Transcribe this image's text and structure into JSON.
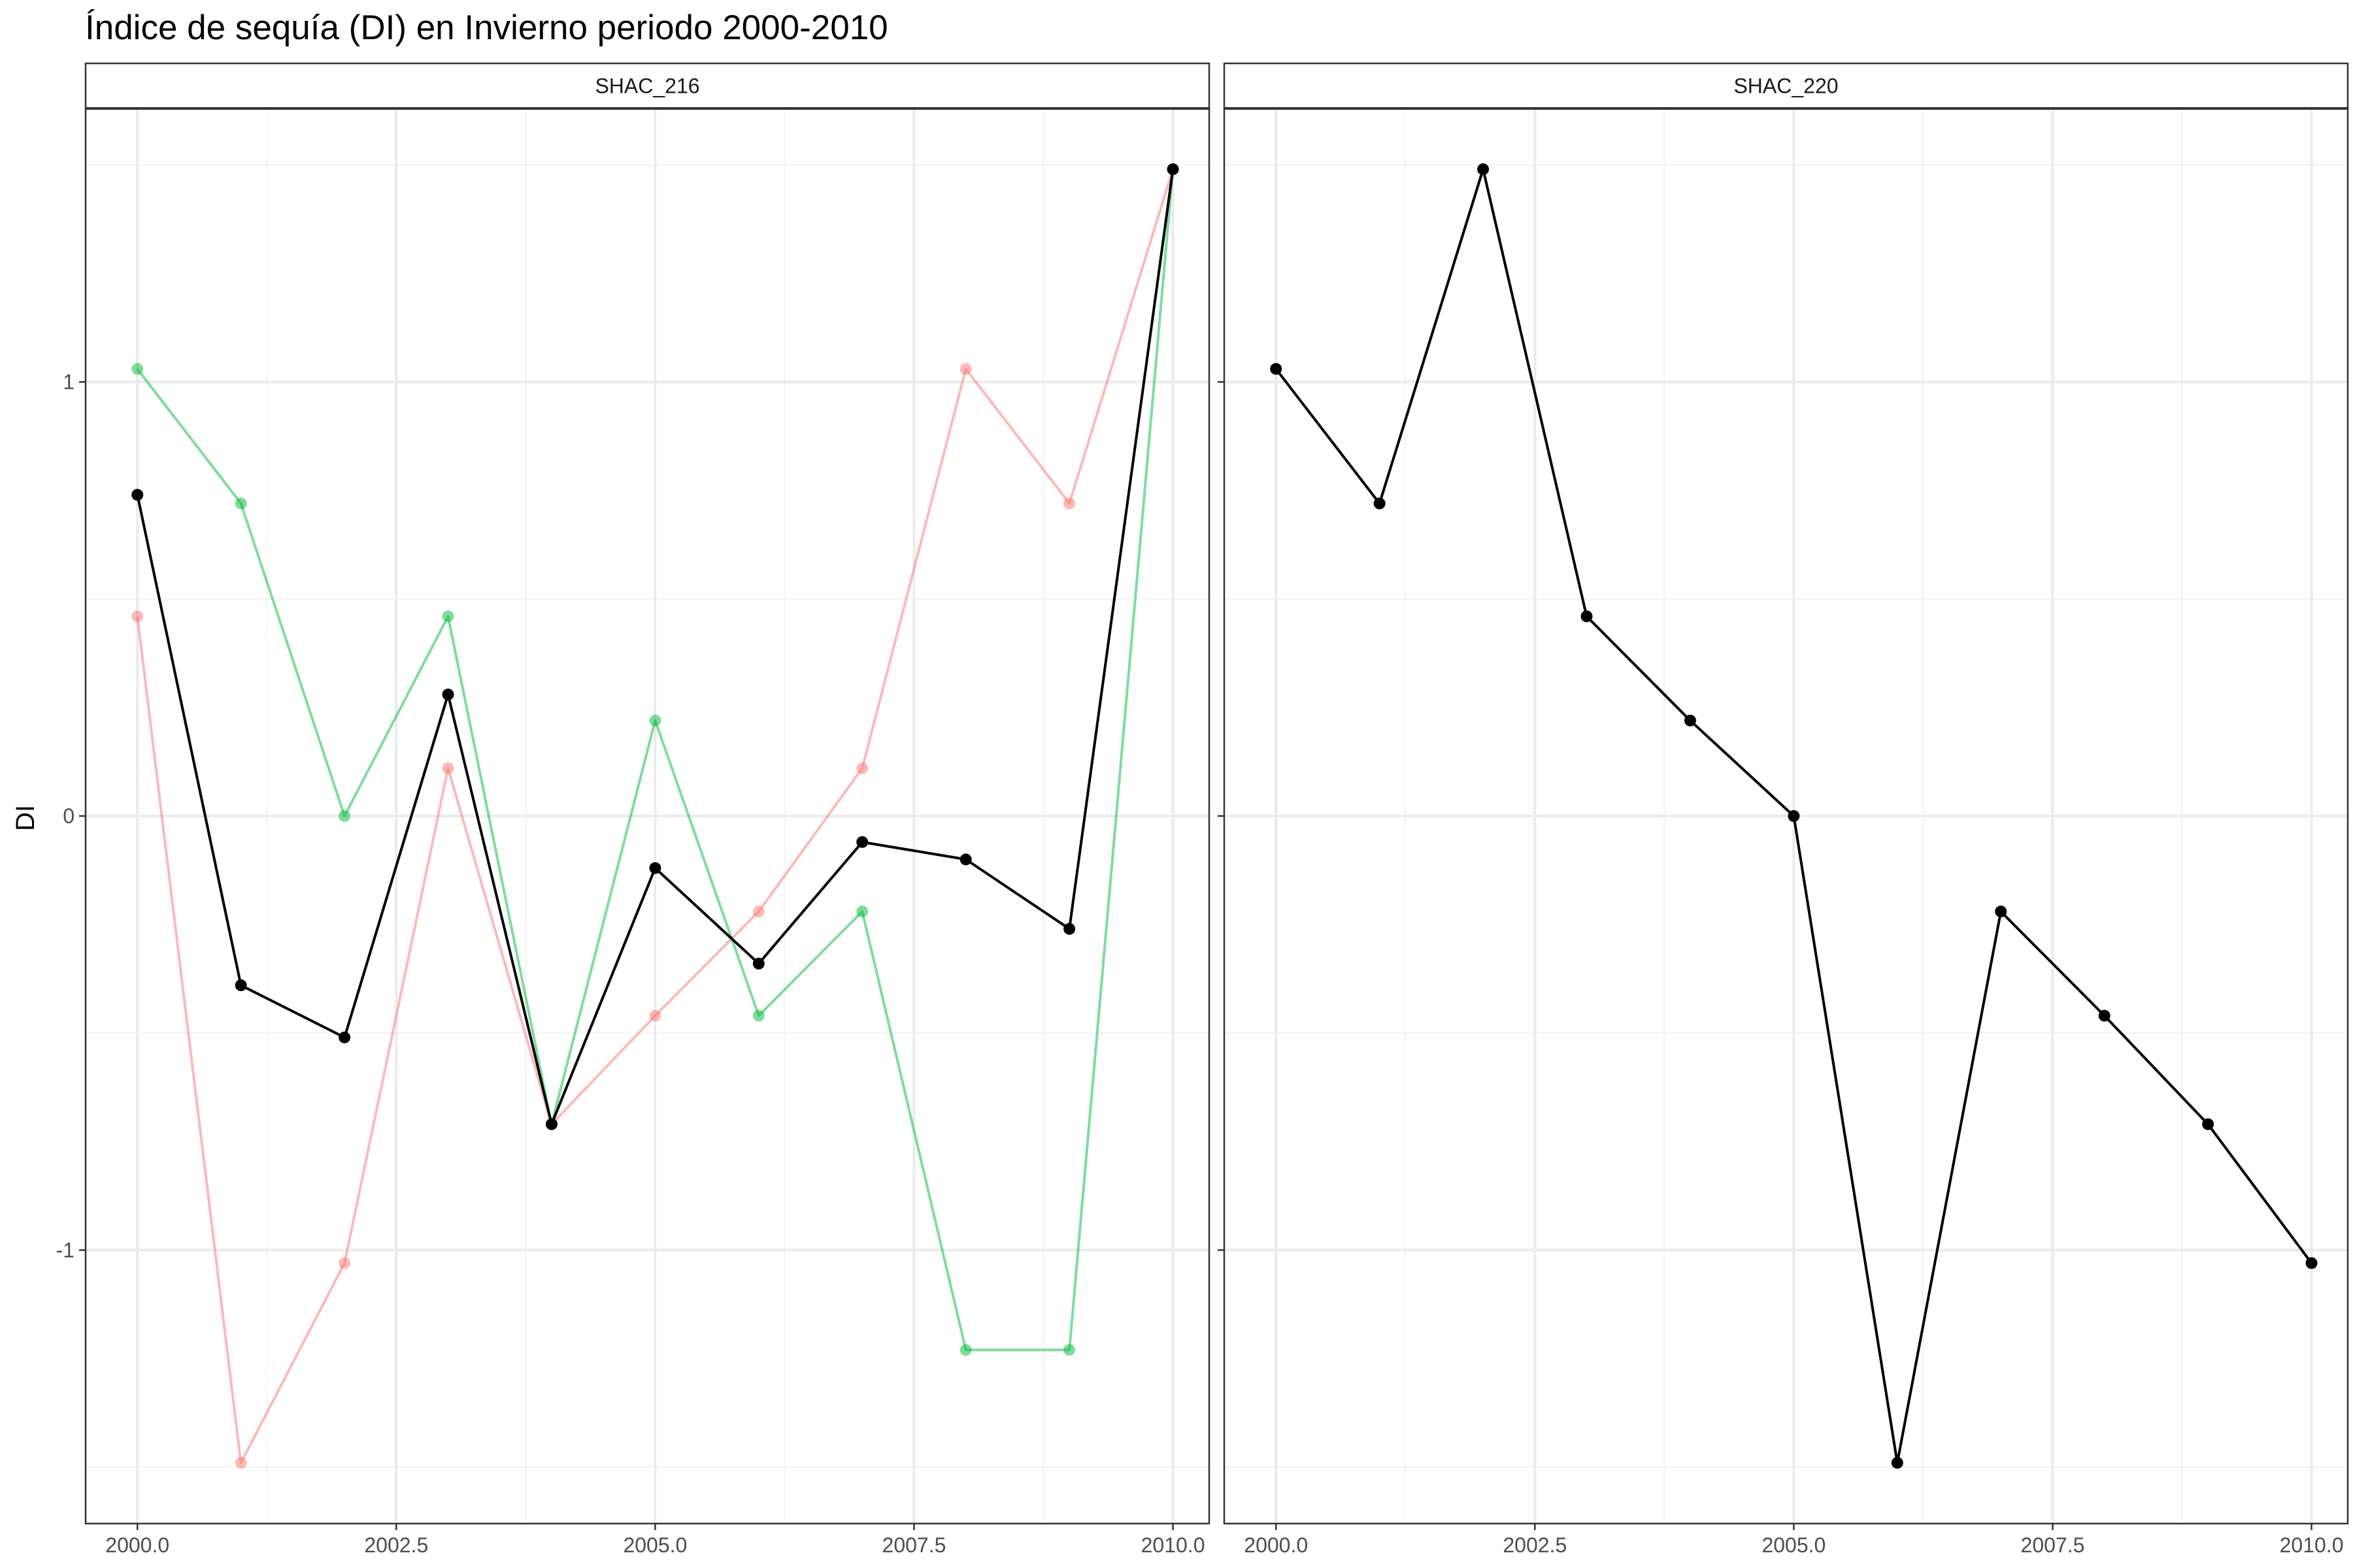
{
  "chart_data": {
    "type": "line",
    "title": "Índice de sequía (DI) en Invierno periodo 2000-2010",
    "xlabel": "",
    "ylabel": "DI",
    "xlim": [
      1999.5,
      2010.35
    ],
    "ylim": [
      -1.63,
      1.63
    ],
    "x_ticks": [
      2000,
      2002.5,
      2005,
      2007.5,
      2010
    ],
    "x_tick_labels": [
      "2000.0",
      "2002.5",
      "2005.0",
      "2007.5",
      "2010.0"
    ],
    "y_ticks": [
      -1,
      0,
      1
    ],
    "y_tick_labels": [
      "-1",
      "0",
      "1"
    ],
    "grid": true,
    "legend": "none",
    "panels": [
      {
        "strip": "SHAC_216",
        "series": [
          {
            "color": "#F8766D",
            "alpha": 0.5,
            "x": [
              2000,
              2001,
              2002,
              2003,
              2004,
              2005,
              2006,
              2007,
              2008,
              2009,
              2010
            ],
            "values": [
              0.46,
              -1.49,
              -1.03,
              0.11,
              -0.71,
              -0.46,
              -0.22,
              0.11,
              1.03,
              0.72,
              1.49
            ]
          },
          {
            "color": "#00BA38",
            "alpha": 0.5,
            "x": [
              2000,
              2001,
              2002,
              2003,
              2004,
              2005,
              2006,
              2007,
              2008,
              2009,
              2010
            ],
            "values": [
              1.03,
              0.72,
              0.0,
              0.46,
              -0.71,
              0.22,
              -0.46,
              -0.22,
              -1.23,
              -1.23,
              1.49
            ]
          },
          {
            "color": "#000000",
            "alpha": 1,
            "x": [
              2000,
              2001,
              2002,
              2003,
              2004,
              2005,
              2006,
              2007,
              2008,
              2009,
              2010
            ],
            "values": [
              0.74,
              -0.39,
              -0.51,
              0.28,
              -0.71,
              -0.12,
              -0.34,
              -0.06,
              -0.1,
              -0.26,
              1.49
            ]
          }
        ]
      },
      {
        "strip": "SHAC_220",
        "series": [
          {
            "color": "#000000",
            "alpha": 1,
            "x": [
              2000,
              2001,
              2002,
              2003,
              2004,
              2005,
              2006,
              2007,
              2008,
              2009,
              2010
            ],
            "values": [
              1.03,
              0.72,
              1.49,
              0.46,
              0.22,
              0.0,
              -1.49,
              -0.22,
              -0.46,
              -0.71,
              -1.03
            ]
          }
        ]
      }
    ]
  }
}
